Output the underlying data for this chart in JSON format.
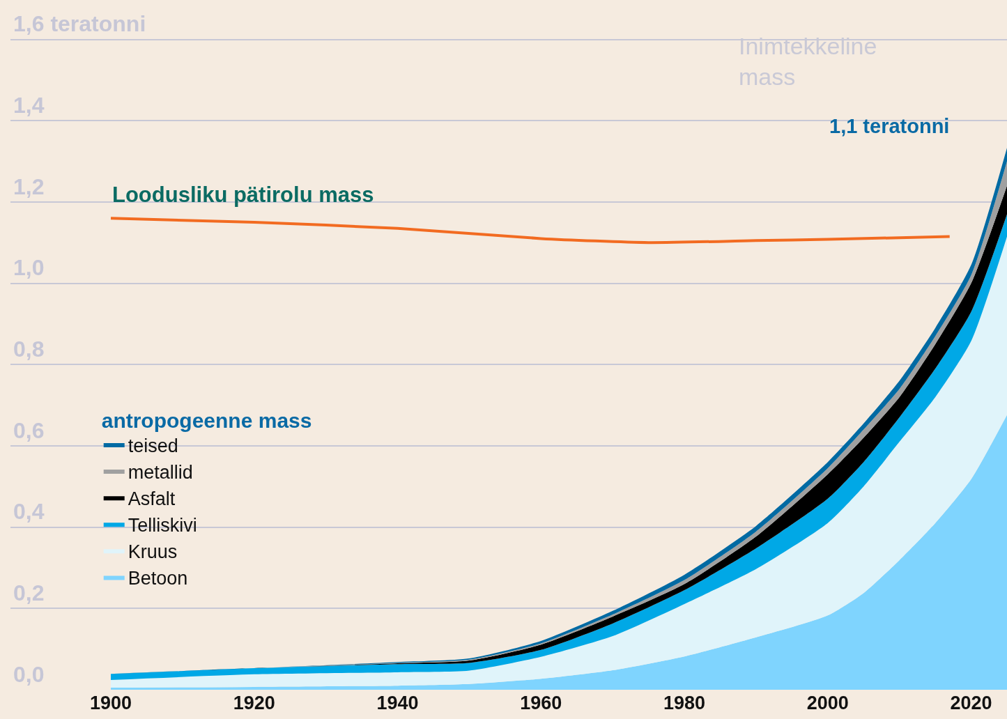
{
  "chart_data": {
    "type": "area",
    "stacked": true,
    "x": [
      1900,
      1920,
      1940,
      1950,
      1960,
      1970,
      1980,
      1990,
      2000,
      2005,
      2010,
      2015,
      2020,
      2025
    ],
    "series": [
      {
        "name": "Betoon",
        "color": "#7fd4fe",
        "values": [
          0.005,
          0.007,
          0.01,
          0.014,
          0.027,
          0.048,
          0.082,
          0.129,
          0.183,
          0.238,
          0.319,
          0.41,
          0.518,
          0.676
        ]
      },
      {
        "name": "Kruus",
        "color": "#e0f4fa",
        "values": [
          0.019,
          0.031,
          0.033,
          0.033,
          0.054,
          0.084,
          0.129,
          0.168,
          0.227,
          0.262,
          0.291,
          0.31,
          0.34,
          0.439
        ]
      },
      {
        "name": "Telliskivi",
        "color": "#00a8e6",
        "values": [
          0.015,
          0.015,
          0.02,
          0.019,
          0.017,
          0.031,
          0.034,
          0.051,
          0.06,
          0.06,
          0.06,
          0.07,
          0.072,
          0.055
        ]
      },
      {
        "name": "Asfalt",
        "color": "#000000",
        "values": [
          0,
          0,
          0.002,
          0.006,
          0.013,
          0.017,
          0.015,
          0.029,
          0.06,
          0.06,
          0.05,
          0.06,
          0.07,
          0.07
        ]
      },
      {
        "name": "metallid",
        "color": "#a0a0a0",
        "values": [
          0,
          0,
          0.001,
          0.002,
          0.003,
          0.005,
          0.01,
          0.012,
          0.015,
          0.02,
          0.02,
          0.02,
          0.02,
          0.06
        ]
      },
      {
        "name": "teised",
        "color": "#006aa3",
        "values": [
          0,
          0,
          0.002,
          0.003,
          0.006,
          0.009,
          0.013,
          0.014,
          0.015,
          0.015,
          0.02,
          0.02,
          0.025,
          0.033
        ]
      },
      {
        "name": "Loodusliku pätirolu mass",
        "type": "line",
        "color": "#f26b21",
        "x": [
          1900,
          1920,
          1940,
          1960,
          1975,
          1990,
          2000,
          2017
        ],
        "values": [
          1.16,
          1.15,
          1.135,
          1.11,
          1.1,
          1.105,
          1.108,
          1.115
        ]
      }
    ],
    "legend_title": "antropogeenne mass",
    "legend": "left",
    "annotations": [
      "Inimtekkeline mass",
      "1,1 teratonni"
    ],
    "xlim": [
      1886,
      2025
    ],
    "xticks": [
      1900,
      1920,
      1940,
      1960,
      1980,
      2000,
      2020
    ],
    "ylim": [
      0,
      1.69
    ],
    "yticks": [
      {
        "value": 0,
        "label": "0,0"
      },
      {
        "value": 0.2,
        "label": "0,2"
      },
      {
        "value": 0.4,
        "label": "0,4"
      },
      {
        "value": 0.6,
        "label": "0,6"
      },
      {
        "value": 0.8,
        "label": "0,8"
      },
      {
        "value": 1.0,
        "label": "1,0"
      },
      {
        "value": 1.2,
        "label": "1,2"
      },
      {
        "value": 1.4,
        "label": "1,4"
      },
      {
        "value": 1.6,
        "label": "1,6 teratonni"
      }
    ],
    "grid": "y"
  }
}
